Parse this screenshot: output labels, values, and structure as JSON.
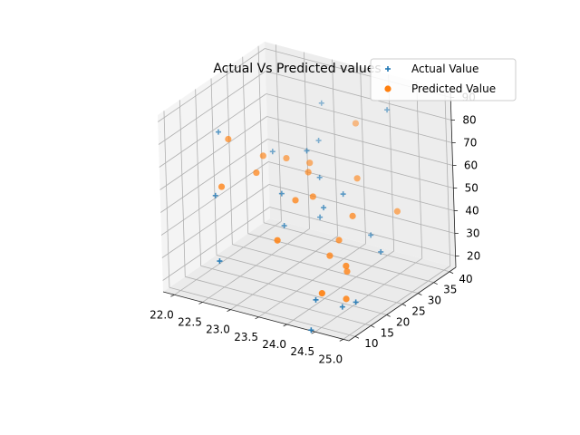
{
  "chart_data": {
    "type": "scatter",
    "title": "Actual Vs Predicted values",
    "projection": "3d",
    "xlim": [
      21.8,
      25.1
    ],
    "ylim": [
      8,
      42
    ],
    "zlim": [
      15,
      93
    ],
    "xticks": [
      "22.0",
      "22.5",
      "23.0",
      "23.5",
      "24.0",
      "24.5",
      "25.0"
    ],
    "yticks": [
      "10",
      "15",
      "20",
      "25",
      "30",
      "35",
      "40"
    ],
    "zticks": [
      "20",
      "30",
      "40",
      "50",
      "60",
      "70",
      "80",
      "90"
    ],
    "legend": {
      "placement": "top-right"
    },
    "grid": true,
    "series": [
      {
        "name": "Actual Value",
        "marker": "plus",
        "color": "#1f77b4",
        "points": [
          [
            21.9,
            25,
            70
          ],
          [
            23.0,
            37,
            62
          ],
          [
            22.1,
            20,
            48
          ],
          [
            22.4,
            33,
            57
          ],
          [
            23.0,
            25,
            50
          ],
          [
            23.3,
            28,
            68
          ],
          [
            23.4,
            30,
            55
          ],
          [
            22.6,
            12,
            30
          ],
          [
            24.3,
            36,
            85
          ],
          [
            24.1,
            25,
            57
          ],
          [
            24.4,
            28,
            38
          ],
          [
            24.8,
            24,
            37
          ],
          [
            24.6,
            15,
            20
          ],
          [
            24.3,
            12,
            24
          ],
          [
            24.2,
            12,
            10
          ],
          [
            23.8,
            24,
            50
          ],
          [
            23.5,
            28,
            40
          ],
          [
            22.9,
            40,
            75
          ],
          [
            24.9,
            14,
            25
          ],
          [
            23.2,
            22,
            40
          ]
        ]
      },
      {
        "name": "Predicted Value",
        "marker": "circle",
        "color": "#ff7f0e",
        "points": [
          [
            21.9,
            28,
            64
          ],
          [
            22.4,
            30,
            58
          ],
          [
            22.5,
            26,
            55
          ],
          [
            22.7,
            32,
            57
          ],
          [
            23.0,
            34,
            55
          ],
          [
            23.2,
            30,
            56
          ],
          [
            23.3,
            24,
            50
          ],
          [
            23.5,
            26,
            51
          ],
          [
            23.3,
            18,
            38
          ],
          [
            23.9,
            33,
            55
          ],
          [
            23.5,
            40,
            70
          ],
          [
            24.2,
            26,
            47
          ],
          [
            24.0,
            25,
            36
          ],
          [
            24.0,
            22,
            32
          ],
          [
            24.6,
            33,
            45
          ],
          [
            24.4,
            20,
            32
          ],
          [
            24.3,
            22,
            27
          ],
          [
            24.3,
            14,
            25
          ],
          [
            24.5,
            18,
            20
          ],
          [
            22.1,
            22,
            50
          ]
        ]
      }
    ]
  }
}
